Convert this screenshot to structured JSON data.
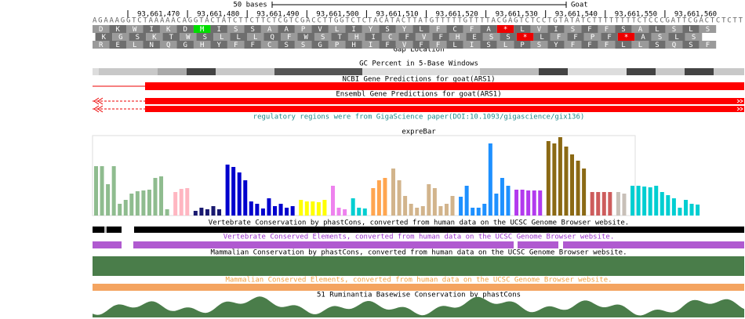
{
  "scale": {
    "label": "50 bases",
    "assembly": "Goat"
  },
  "positions": [
    "93,661,470",
    "93,661,480",
    "93,661,490",
    "93,661,500",
    "93,661,510",
    "93,661,520",
    "93,661,530",
    "93,661,540",
    "93,661,550",
    "93,661,560"
  ],
  "sequence": "AGAAAGGTCTAAAAACAGGTACTATCTTCTTCTCGTCGACCTTGGTCTCTACATACTTATGTTTTTGTTTTACGAGTCTCCTGTATATCTTTTTTTTCTCCCGATTCGACTCTCTT",
  "frames": [
    [
      "D",
      "K",
      "W",
      "I",
      "K",
      "D",
      "M",
      "I",
      "S",
      "S",
      "A",
      "A",
      "P",
      "V",
      "L",
      "I",
      "Y",
      "S",
      "Y",
      "L",
      "F",
      "C",
      "F",
      "A",
      "*",
      "L",
      "V",
      "I",
      "S",
      "F",
      "F",
      "S",
      "A",
      "L",
      "S",
      "L",
      "S"
    ],
    [
      "K",
      "G",
      "S",
      "K",
      "T",
      "W",
      "S",
      "L",
      "L",
      "L",
      "Q",
      "F",
      "W",
      "S",
      "T",
      "H",
      "I",
      "C",
      "F",
      "V",
      "F",
      "H",
      "E",
      "S",
      "S",
      "*",
      "L",
      "F",
      "F",
      "P",
      "F",
      "*",
      "A",
      "S",
      "L",
      "S"
    ],
    [
      "R",
      "E",
      "L",
      "N",
      "Q",
      "G",
      "H",
      "Y",
      "F",
      "F",
      "C",
      "S",
      "S",
      "G",
      "P",
      "H",
      "I",
      "F",
      "V",
      "F",
      "F",
      "L",
      "I",
      "S",
      "L",
      "P",
      "S",
      "Y",
      "F",
      "F",
      "F",
      "L",
      "L",
      "S",
      "Q",
      "S",
      "F"
    ]
  ],
  "tracks": {
    "gap": "Gap Location",
    "gc": "GC Percent in 5-Base Windows",
    "ncbi": "NCBI Gene Predictions for goat(ARS1)",
    "ensembl": "Ensembl Gene Predictions for goat(ARS1)",
    "regulatory": "regulatory regions were from GigaScience paper(DOI:10.1093/gigascience/gix136)",
    "vert_cons": "Vertebrate Conservation by phastCons, converted from human data on the UCSC Genome Browser website.",
    "vert_elements": "Vertebrate Conserved Elements, converted from human data on the UCSC Genome Browser website.",
    "mam_cons": "Mammalian Conservation by phastCons, converted from human data on the UCSC Genome Browser website.",
    "mam_elements": "Mammalian Conserved Elements, converted from human data on the UCSC Genome Browser website.",
    "rumi": "51 Ruminantia Basewise Conservation by phastCons"
  },
  "expre_bar": {
    "title": "expreBar",
    "groups": [
      {
        "color": "#8fbc8f",
        "values": [
          63,
          63,
          40,
          63,
          15,
          20,
          28,
          31,
          32,
          33,
          48,
          50,
          8
        ]
      },
      {
        "color": "#ffb6c1",
        "values": [
          30,
          34,
          35
        ]
      },
      {
        "color": "#191970",
        "values": [
          6,
          10,
          8,
          12,
          8
        ]
      },
      {
        "color": "#0000cd",
        "values": [
          65,
          62,
          55,
          45,
          18,
          15,
          9,
          22,
          12,
          15,
          10,
          12
        ]
      },
      {
        "color": "#ffff00",
        "values": [
          20,
          18,
          18,
          17,
          20
        ]
      },
      {
        "color": "#ee82ee",
        "values": [
          38,
          10,
          8
        ]
      },
      {
        "color": "#00ced1",
        "values": [
          22,
          10,
          9
        ]
      },
      {
        "color": "#ffa54f",
        "values": [
          35,
          45,
          48
        ]
      },
      {
        "color": "#d2b48c",
        "values": [
          60,
          45,
          25,
          15,
          10,
          12,
          40,
          35,
          12,
          15,
          25
        ]
      },
      {
        "color": "#1e90ff",
        "values": [
          24,
          38,
          10,
          10,
          15,
          92,
          28,
          48,
          38
        ]
      },
      {
        "color": "#b23aee",
        "values": [
          33,
          33,
          32,
          32,
          32
        ]
      },
      {
        "color": "#8b6914",
        "values": [
          95,
          92,
          100,
          88,
          78,
          70,
          60
        ]
      },
      {
        "color": "#cd5c5c",
        "values": [
          30,
          30,
          30,
          30
        ]
      },
      {
        "color": "#c8c0b8",
        "values": [
          30,
          28
        ]
      },
      {
        "color": "#00ced1",
        "values": [
          38,
          38,
          37,
          36,
          38,
          30,
          26,
          22,
          10,
          20,
          15,
          14
        ]
      }
    ]
  }
}
